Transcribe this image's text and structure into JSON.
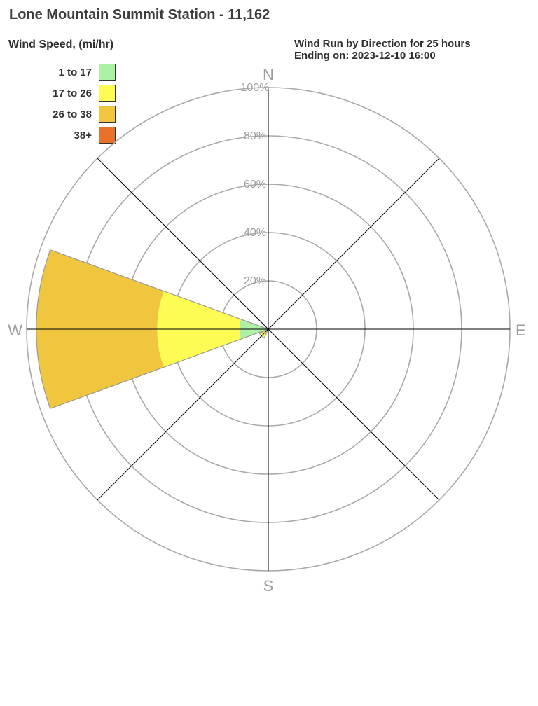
{
  "station": {
    "title": "Lone Mountain Summit Station - 11,162"
  },
  "chart_data": {
    "type": "windrose",
    "title": "Wind Run by Direction for 25 hours",
    "subtitle": "Ending on: 2023-12-10 16:00",
    "legend_title": "Wind Speed, (mi/hr)",
    "units": "percent of total wind run",
    "grid": "polar rings at 20% steps, 8 radial spokes",
    "ring_ticks_percent": [
      20,
      40,
      60,
      80,
      100
    ],
    "ring_tick_labels": [
      "20%",
      "40%",
      "60%",
      "80%",
      "100%"
    ],
    "compass_labels": [
      "N",
      "E",
      "S",
      "W"
    ],
    "petal_angular_width_deg": 40,
    "speed_bins": [
      {
        "label": "1 to 17",
        "color": "#aef0a6"
      },
      {
        "label": "17 to 26",
        "color": "#fcfc54"
      },
      {
        "label": "26 to 38",
        "color": "#f1c63f"
      },
      {
        "label": "38+",
        "color": "#e87028"
      }
    ],
    "petals": [
      {
        "direction": "W",
        "total_pct": 96,
        "segments": [
          {
            "bin": "1 to 17",
            "from_pct": 0,
            "to_pct": 12
          },
          {
            "bin": "17 to 26",
            "from_pct": 12,
            "to_pct": 46
          },
          {
            "bin": "26 to 38",
            "from_pct": 46,
            "to_pct": 96
          }
        ]
      },
      {
        "direction": "SW",
        "total_pct": 4,
        "segments": [
          {
            "bin": "1 to 17",
            "from_pct": 0,
            "to_pct": 1
          },
          {
            "bin": "17 to 26",
            "from_pct": 1,
            "to_pct": 4
          }
        ]
      }
    ],
    "colors": {
      "grid_ring": "#a9a9a9",
      "spoke": "#000000",
      "petal_outline": "#999999",
      "tick_label": "#9e9e9e",
      "compass_label": "#9e9e9e",
      "heading_text": "#3d3d3d"
    }
  }
}
